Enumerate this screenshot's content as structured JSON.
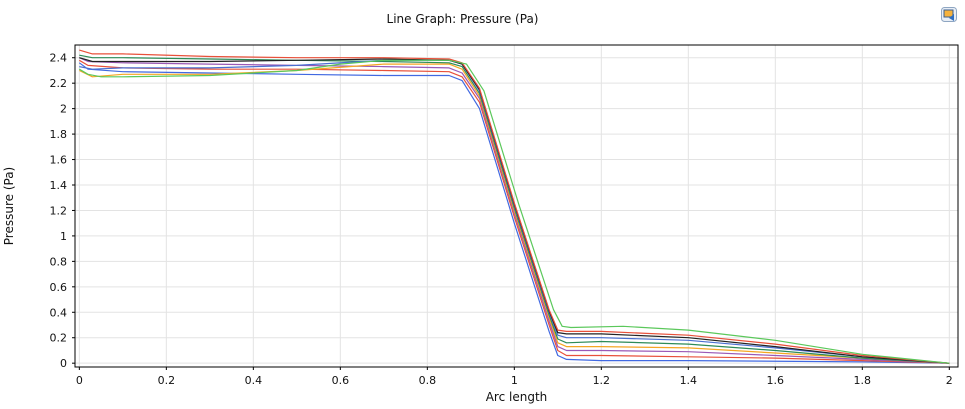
{
  "title": "Line Graph: Pressure (Pa)",
  "toolbar": {
    "export_icon": "image-export-icon"
  },
  "chart_data": {
    "type": "line",
    "title": "Line Graph: Pressure (Pa)",
    "xlabel": "Arc length",
    "ylabel": "Pressure (Pa)",
    "xlim": [
      -0.01,
      2.02
    ],
    "ylim": [
      -0.03,
      2.5
    ],
    "xticks": [
      0,
      0.2,
      0.4,
      0.6,
      0.8,
      1,
      1.2,
      1.4,
      1.6,
      1.8,
      2
    ],
    "yticks": [
      0,
      0.2,
      0.4,
      0.6,
      0.8,
      1,
      1.2,
      1.4,
      1.6,
      1.8,
      2,
      2.2,
      2.4
    ],
    "grid": true,
    "series": [
      {
        "color": "#4169e1",
        "points": [
          [
            0,
            2.36
          ],
          [
            0.02,
            2.31
          ],
          [
            0.1,
            2.29
          ],
          [
            0.3,
            2.28
          ],
          [
            0.5,
            2.27
          ],
          [
            0.7,
            2.26
          ],
          [
            0.85,
            2.26
          ],
          [
            0.88,
            2.22
          ],
          [
            0.92,
            2.0
          ],
          [
            1.0,
            1.1
          ],
          [
            1.08,
            0.25
          ],
          [
            1.1,
            0.06
          ],
          [
            1.12,
            0.03
          ],
          [
            1.2,
            0.02
          ],
          [
            1.4,
            0.02
          ],
          [
            1.8,
            0.01
          ],
          [
            2.0,
            0.0
          ]
        ]
      },
      {
        "color": "#e8503a",
        "points": [
          [
            0,
            2.38
          ],
          [
            0.02,
            2.34
          ],
          [
            0.1,
            2.32
          ],
          [
            0.3,
            2.31
          ],
          [
            0.5,
            2.31
          ],
          [
            0.7,
            2.3
          ],
          [
            0.85,
            2.29
          ],
          [
            0.88,
            2.25
          ],
          [
            0.92,
            2.05
          ],
          [
            1.0,
            1.15
          ],
          [
            1.08,
            0.3
          ],
          [
            1.1,
            0.1
          ],
          [
            1.12,
            0.06
          ],
          [
            1.2,
            0.06
          ],
          [
            1.4,
            0.05
          ],
          [
            1.6,
            0.04
          ],
          [
            1.8,
            0.02
          ],
          [
            2.0,
            0.0
          ]
        ]
      },
      {
        "color": "#9b59b6",
        "points": [
          [
            0,
            2.4
          ],
          [
            0.02,
            2.37
          ],
          [
            0.1,
            2.36
          ],
          [
            0.3,
            2.35
          ],
          [
            0.5,
            2.34
          ],
          [
            0.7,
            2.33
          ],
          [
            0.85,
            2.32
          ],
          [
            0.88,
            2.28
          ],
          [
            0.92,
            2.08
          ],
          [
            1.0,
            1.18
          ],
          [
            1.08,
            0.33
          ],
          [
            1.1,
            0.13
          ],
          [
            1.12,
            0.1
          ],
          [
            1.2,
            0.1
          ],
          [
            1.4,
            0.09
          ],
          [
            1.6,
            0.06
          ],
          [
            1.8,
            0.03
          ],
          [
            2.0,
            0.0
          ]
        ]
      },
      {
        "color": "#f5a623",
        "points": [
          [
            0,
            2.3
          ],
          [
            0.03,
            2.25
          ],
          [
            0.1,
            2.27
          ],
          [
            0.3,
            2.27
          ],
          [
            0.5,
            2.3
          ],
          [
            0.7,
            2.35
          ],
          [
            0.85,
            2.35
          ],
          [
            0.88,
            2.31
          ],
          [
            0.92,
            2.1
          ],
          [
            1.0,
            1.2
          ],
          [
            1.08,
            0.36
          ],
          [
            1.1,
            0.16
          ],
          [
            1.12,
            0.13
          ],
          [
            1.2,
            0.13
          ],
          [
            1.4,
            0.12
          ],
          [
            1.6,
            0.08
          ],
          [
            1.8,
            0.04
          ],
          [
            2.0,
            0.0
          ]
        ]
      },
      {
        "color": "#2e8b57",
        "points": [
          [
            0,
            2.42
          ],
          [
            0.03,
            2.4
          ],
          [
            0.1,
            2.4
          ],
          [
            0.3,
            2.39
          ],
          [
            0.5,
            2.38
          ],
          [
            0.7,
            2.37
          ],
          [
            0.85,
            2.36
          ],
          [
            0.88,
            2.33
          ],
          [
            0.92,
            2.12
          ],
          [
            1.0,
            1.22
          ],
          [
            1.08,
            0.38
          ],
          [
            1.1,
            0.19
          ],
          [
            1.12,
            0.16
          ],
          [
            1.2,
            0.17
          ],
          [
            1.4,
            0.15
          ],
          [
            1.6,
            0.1
          ],
          [
            1.8,
            0.04
          ],
          [
            2.0,
            0.0
          ]
        ]
      },
      {
        "color": "#4a6fd1",
        "points": [
          [
            0,
            2.33
          ],
          [
            0.03,
            2.31
          ],
          [
            0.1,
            2.32
          ],
          [
            0.3,
            2.32
          ],
          [
            0.5,
            2.34
          ],
          [
            0.7,
            2.38
          ],
          [
            0.85,
            2.38
          ],
          [
            0.88,
            2.35
          ],
          [
            0.92,
            2.14
          ],
          [
            1.0,
            1.24
          ],
          [
            1.08,
            0.4
          ],
          [
            1.1,
            0.22
          ],
          [
            1.12,
            0.2
          ],
          [
            1.2,
            0.2
          ],
          [
            1.4,
            0.18
          ],
          [
            1.6,
            0.12
          ],
          [
            1.8,
            0.05
          ],
          [
            2.0,
            0.0
          ]
        ]
      },
      {
        "color": "#222222",
        "points": [
          [
            0,
            2.4
          ],
          [
            0.03,
            2.37
          ],
          [
            0.1,
            2.37
          ],
          [
            0.3,
            2.37
          ],
          [
            0.5,
            2.38
          ],
          [
            0.7,
            2.39
          ],
          [
            0.85,
            2.38
          ],
          [
            0.88,
            2.35
          ],
          [
            0.92,
            2.15
          ],
          [
            1.0,
            1.25
          ],
          [
            1.08,
            0.41
          ],
          [
            1.1,
            0.24
          ],
          [
            1.12,
            0.23
          ],
          [
            1.2,
            0.23
          ],
          [
            1.4,
            0.2
          ],
          [
            1.6,
            0.13
          ],
          [
            1.8,
            0.05
          ],
          [
            2.0,
            0.0
          ]
        ]
      },
      {
        "color": "#e8503a",
        "points": [
          [
            0,
            2.46
          ],
          [
            0.03,
            2.43
          ],
          [
            0.1,
            2.43
          ],
          [
            0.3,
            2.41
          ],
          [
            0.5,
            2.4
          ],
          [
            0.7,
            2.4
          ],
          [
            0.85,
            2.39
          ],
          [
            0.88,
            2.36
          ],
          [
            0.92,
            2.16
          ],
          [
            1.0,
            1.26
          ],
          [
            1.08,
            0.42
          ],
          [
            1.1,
            0.26
          ],
          [
            1.12,
            0.25
          ],
          [
            1.2,
            0.25
          ],
          [
            1.4,
            0.22
          ],
          [
            1.6,
            0.15
          ],
          [
            1.8,
            0.06
          ],
          [
            2.0,
            0.0
          ]
        ]
      },
      {
        "color": "#5bc85b",
        "points": [
          [
            0,
            2.31
          ],
          [
            0.02,
            2.27
          ],
          [
            0.05,
            2.25
          ],
          [
            0.1,
            2.25
          ],
          [
            0.3,
            2.26
          ],
          [
            0.5,
            2.3
          ],
          [
            0.6,
            2.35
          ],
          [
            0.7,
            2.38
          ],
          [
            0.85,
            2.38
          ],
          [
            0.89,
            2.35
          ],
          [
            0.93,
            2.14
          ],
          [
            1.01,
            1.25
          ],
          [
            1.09,
            0.42
          ],
          [
            1.11,
            0.29
          ],
          [
            1.13,
            0.28
          ],
          [
            1.25,
            0.29
          ],
          [
            1.4,
            0.26
          ],
          [
            1.6,
            0.18
          ],
          [
            1.8,
            0.07
          ],
          [
            2.0,
            0.0
          ]
        ]
      }
    ]
  }
}
